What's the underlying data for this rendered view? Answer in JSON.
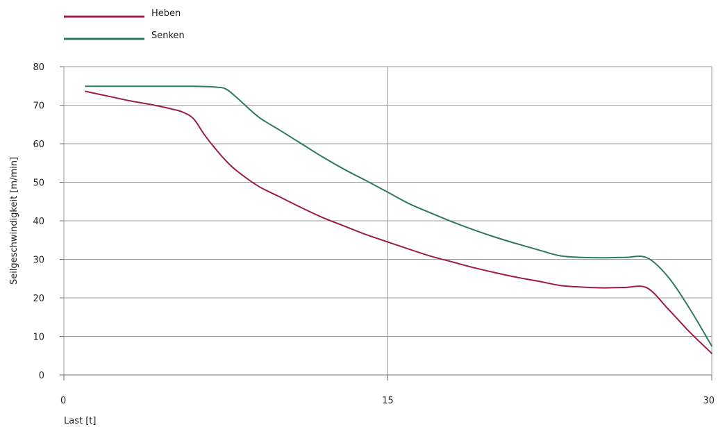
{
  "chart_data": {
    "type": "line",
    "title": "",
    "xlabel": "Last [t]",
    "ylabel": "Seilgeschwindigkeit [m/min]",
    "xlim": [
      0,
      30
    ],
    "ylim": [
      0,
      80
    ],
    "x_ticks": [
      0,
      15,
      30
    ],
    "y_ticks": [
      0,
      10,
      20,
      30,
      40,
      50,
      60,
      70,
      80
    ],
    "x_tick_labels": [
      "0",
      "15",
      "30"
    ],
    "y_tick_labels": [
      "0",
      "10",
      "20",
      "30",
      "40",
      "50",
      "60",
      "70",
      "80"
    ],
    "grid": true,
    "legend": {
      "placement": "top-left",
      "entries": [
        {
          "name": "Heben",
          "color": "#9b1c48"
        },
        {
          "name": "Senken",
          "color": "#2b7a5a"
        }
      ]
    },
    "series": [
      {
        "name": "Heben",
        "color": "#9b1c48",
        "points": [
          [
            1,
            73.6
          ],
          [
            2,
            72.4
          ],
          [
            3,
            71.2
          ],
          [
            4,
            70.2
          ],
          [
            5,
            69
          ],
          [
            5.5,
            68.2
          ],
          [
            6,
            66.5
          ],
          [
            6.5,
            62.4
          ],
          [
            7,
            58.8
          ],
          [
            7.5,
            55.6
          ],
          [
            8,
            53
          ],
          [
            9,
            49
          ],
          [
            10,
            46.2
          ],
          [
            11,
            43.4
          ],
          [
            12,
            40.8
          ],
          [
            13,
            38.6
          ],
          [
            14,
            36.4
          ],
          [
            15,
            34.5
          ],
          [
            16,
            32.6
          ],
          [
            17,
            30.8
          ],
          [
            18,
            29.3
          ],
          [
            19,
            27.8
          ],
          [
            20,
            26.5
          ],
          [
            21,
            25.3
          ],
          [
            22,
            24.3
          ],
          [
            23,
            23.2
          ],
          [
            24,
            22.8
          ],
          [
            25,
            22.6
          ],
          [
            26,
            22.7
          ],
          [
            27,
            22.6
          ],
          [
            28,
            17
          ],
          [
            29,
            11
          ],
          [
            30,
            5.6
          ]
        ]
      },
      {
        "name": "Senken",
        "color": "#2b7a5a",
        "points": [
          [
            1,
            74.9
          ],
          [
            2,
            74.9
          ],
          [
            3,
            74.9
          ],
          [
            4,
            74.9
          ],
          [
            5,
            74.9
          ],
          [
            6,
            74.9
          ],
          [
            7,
            74.7
          ],
          [
            7.5,
            74.2
          ],
          [
            8,
            72
          ],
          [
            9,
            67
          ],
          [
            10,
            63.5
          ],
          [
            11,
            60
          ],
          [
            12,
            56.5
          ],
          [
            13,
            53.3
          ],
          [
            14,
            50.4
          ],
          [
            15,
            47.4
          ],
          [
            16,
            44.4
          ],
          [
            17,
            42
          ],
          [
            18,
            39.7
          ],
          [
            19,
            37.6
          ],
          [
            20,
            35.7
          ],
          [
            21,
            34
          ],
          [
            22,
            32.4
          ],
          [
            23,
            30.9
          ],
          [
            24,
            30.5
          ],
          [
            25,
            30.4
          ],
          [
            26,
            30.5
          ],
          [
            27,
            30.4
          ],
          [
            28,
            25.3
          ],
          [
            29,
            17
          ],
          [
            30,
            7.5
          ]
        ]
      }
    ]
  }
}
